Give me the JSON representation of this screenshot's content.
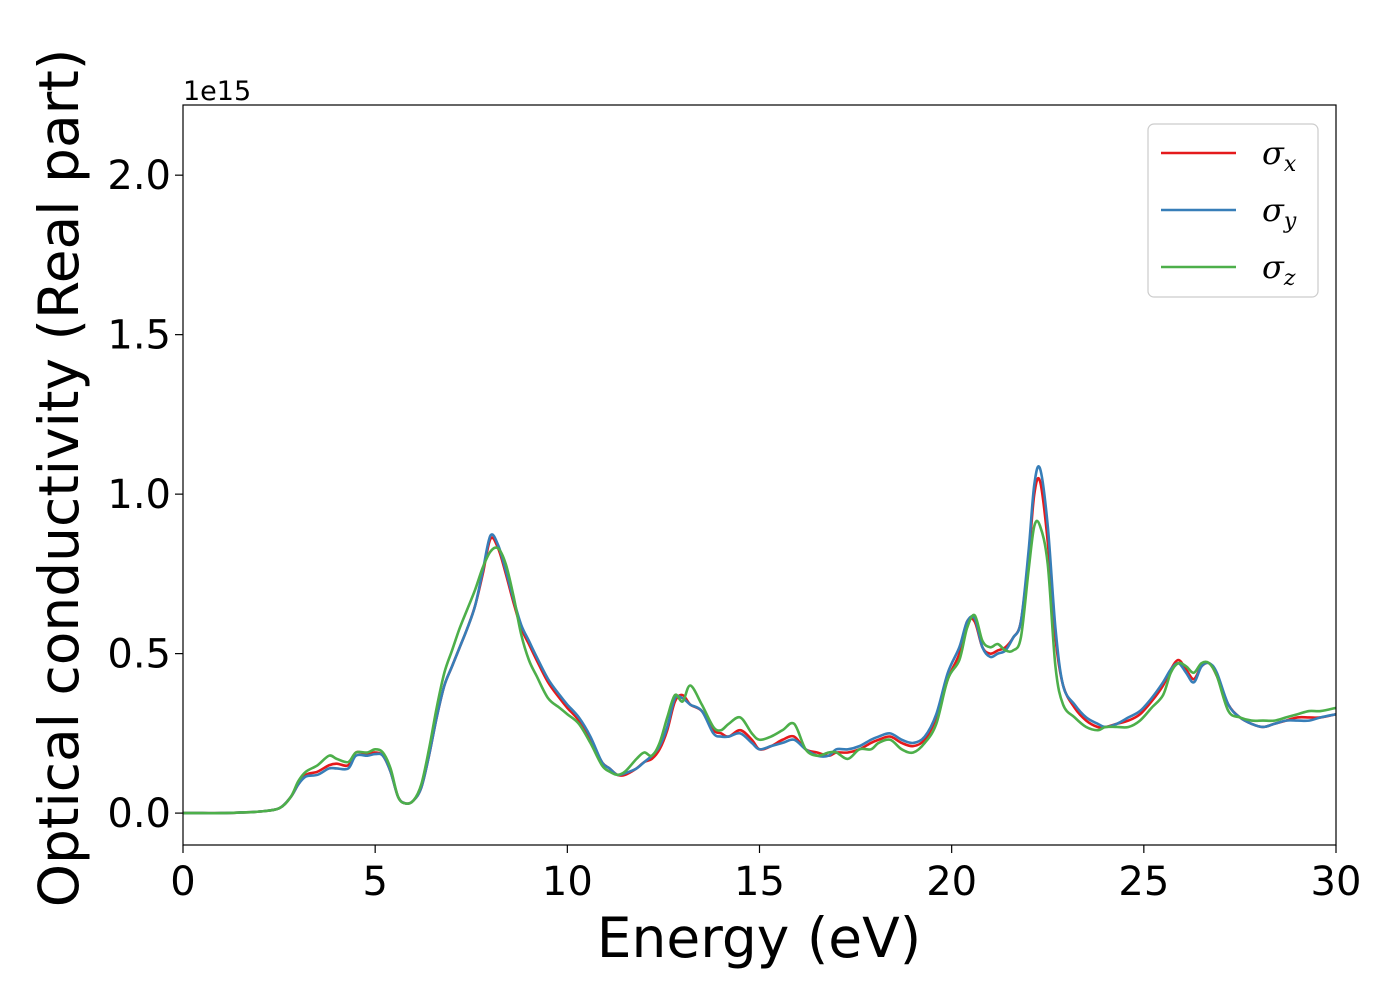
{
  "chart_data": {
    "type": "line",
    "title": "",
    "xlabel": "Energy (eV)",
    "ylabel": "Optical conductivity (Real part)",
    "y_offset_label": "1e15",
    "xlim": [
      0,
      30
    ],
    "ylim": [
      -0.1,
      2.22
    ],
    "xticks": [
      0,
      5,
      10,
      15,
      20,
      25,
      30
    ],
    "xtick_labels": [
      "0",
      "5",
      "10",
      "15",
      "20",
      "25",
      "30"
    ],
    "yticks": [
      0.0,
      0.5,
      1.0,
      1.5,
      2.0
    ],
    "ytick_labels": [
      "0.0",
      "0.5",
      "1.0",
      "1.5",
      "2.0"
    ],
    "grid": false,
    "legend_position": "top-right",
    "x": [
      0,
      0.5,
      1,
      1.5,
      2,
      2.5,
      2.8,
      3,
      3.2,
      3.5,
      3.8,
      4,
      4.3,
      4.5,
      4.8,
      5,
      5.2,
      5.4,
      5.6,
      5.8,
      6,
      6.2,
      6.4,
      6.6,
      6.8,
      7,
      7.2,
      7.4,
      7.6,
      7.8,
      8,
      8.2,
      8.4,
      8.6,
      8.8,
      9,
      9.2,
      9.5,
      9.8,
      10,
      10.3,
      10.6,
      10.9,
      11.1,
      11.3,
      11.5,
      11.8,
      12,
      12.2,
      12.4,
      12.6,
      12.8,
      13,
      13.2,
      13.5,
      13.8,
      14,
      14.2,
      14.5,
      14.8,
      15,
      15.3,
      15.6,
      15.9,
      16.2,
      16.5,
      16.8,
      17,
      17.3,
      17.6,
      17.9,
      18.1,
      18.4,
      18.7,
      19,
      19.3,
      19.6,
      19.9,
      20.2,
      20.4,
      20.6,
      20.8,
      21,
      21.2,
      21.4,
      21.6,
      21.8,
      22,
      22.15,
      22.3,
      22.5,
      22.7,
      22.9,
      23.2,
      23.5,
      23.8,
      24,
      24.3,
      24.6,
      24.9,
      25.2,
      25.5,
      25.7,
      25.9,
      26.1,
      26.3,
      26.5,
      26.7,
      26.9,
      27.2,
      27.5,
      27.8,
      28.1,
      28.4,
      28.7,
      29,
      29.3,
      29.6,
      30
    ],
    "series": [
      {
        "name": "σ_x",
        "color": "#e41a1c",
        "values": [
          0,
          0,
          0,
          0.002,
          0.005,
          0.015,
          0.05,
          0.09,
          0.12,
          0.13,
          0.15,
          0.155,
          0.15,
          0.19,
          0.185,
          0.19,
          0.18,
          0.13,
          0.05,
          0.03,
          0.04,
          0.08,
          0.18,
          0.3,
          0.4,
          0.46,
          0.52,
          0.58,
          0.65,
          0.75,
          0.86,
          0.83,
          0.75,
          0.66,
          0.58,
          0.53,
          0.48,
          0.41,
          0.36,
          0.33,
          0.29,
          0.23,
          0.16,
          0.14,
          0.12,
          0.12,
          0.14,
          0.16,
          0.17,
          0.2,
          0.26,
          0.35,
          0.37,
          0.34,
          0.32,
          0.26,
          0.25,
          0.24,
          0.26,
          0.23,
          0.2,
          0.21,
          0.23,
          0.24,
          0.2,
          0.19,
          0.18,
          0.19,
          0.19,
          0.2,
          0.22,
          0.23,
          0.24,
          0.22,
          0.21,
          0.23,
          0.3,
          0.42,
          0.5,
          0.6,
          0.6,
          0.52,
          0.5,
          0.51,
          0.52,
          0.55,
          0.6,
          0.8,
          1.0,
          1.04,
          0.85,
          0.55,
          0.4,
          0.33,
          0.29,
          0.27,
          0.27,
          0.28,
          0.29,
          0.31,
          0.35,
          0.4,
          0.45,
          0.48,
          0.45,
          0.42,
          0.46,
          0.47,
          0.43,
          0.34,
          0.3,
          0.28,
          0.27,
          0.28,
          0.29,
          0.3,
          0.3,
          0.3,
          0.31
        ]
      },
      {
        "name": "σ_y",
        "color": "#377eb8",
        "values": [
          0,
          0,
          0,
          0.002,
          0.005,
          0.015,
          0.05,
          0.09,
          0.115,
          0.12,
          0.14,
          0.14,
          0.14,
          0.18,
          0.18,
          0.185,
          0.18,
          0.13,
          0.05,
          0.03,
          0.04,
          0.08,
          0.18,
          0.3,
          0.4,
          0.46,
          0.52,
          0.58,
          0.65,
          0.76,
          0.87,
          0.84,
          0.76,
          0.67,
          0.59,
          0.54,
          0.49,
          0.42,
          0.37,
          0.34,
          0.3,
          0.24,
          0.16,
          0.14,
          0.12,
          0.125,
          0.14,
          0.16,
          0.18,
          0.21,
          0.27,
          0.36,
          0.36,
          0.34,
          0.32,
          0.25,
          0.24,
          0.24,
          0.25,
          0.22,
          0.2,
          0.21,
          0.22,
          0.23,
          0.2,
          0.18,
          0.18,
          0.2,
          0.2,
          0.21,
          0.23,
          0.24,
          0.25,
          0.23,
          0.22,
          0.24,
          0.31,
          0.44,
          0.52,
          0.6,
          0.61,
          0.52,
          0.49,
          0.5,
          0.51,
          0.55,
          0.6,
          0.82,
          1.03,
          1.08,
          0.9,
          0.58,
          0.4,
          0.34,
          0.3,
          0.28,
          0.27,
          0.28,
          0.3,
          0.32,
          0.36,
          0.41,
          0.45,
          0.47,
          0.44,
          0.41,
          0.46,
          0.47,
          0.44,
          0.34,
          0.3,
          0.28,
          0.27,
          0.28,
          0.29,
          0.29,
          0.29,
          0.3,
          0.31
        ]
      },
      {
        "name": "σ_z",
        "color": "#4daf4a",
        "values": [
          0,
          0,
          0,
          0.002,
          0.005,
          0.015,
          0.05,
          0.1,
          0.13,
          0.15,
          0.18,
          0.17,
          0.16,
          0.19,
          0.19,
          0.2,
          0.19,
          0.14,
          0.05,
          0.03,
          0.04,
          0.09,
          0.2,
          0.33,
          0.44,
          0.51,
          0.58,
          0.64,
          0.7,
          0.77,
          0.82,
          0.83,
          0.78,
          0.68,
          0.56,
          0.48,
          0.43,
          0.36,
          0.33,
          0.31,
          0.28,
          0.22,
          0.15,
          0.13,
          0.12,
          0.13,
          0.17,
          0.19,
          0.18,
          0.22,
          0.3,
          0.37,
          0.35,
          0.4,
          0.34,
          0.27,
          0.26,
          0.28,
          0.3,
          0.25,
          0.23,
          0.24,
          0.26,
          0.28,
          0.2,
          0.18,
          0.19,
          0.19,
          0.17,
          0.2,
          0.2,
          0.22,
          0.23,
          0.2,
          0.19,
          0.22,
          0.28,
          0.42,
          0.48,
          0.58,
          0.62,
          0.54,
          0.52,
          0.53,
          0.51,
          0.51,
          0.55,
          0.76,
          0.9,
          0.9,
          0.78,
          0.46,
          0.34,
          0.3,
          0.27,
          0.26,
          0.27,
          0.27,
          0.27,
          0.29,
          0.33,
          0.37,
          0.44,
          0.47,
          0.46,
          0.44,
          0.47,
          0.47,
          0.43,
          0.32,
          0.3,
          0.29,
          0.29,
          0.29,
          0.3,
          0.31,
          0.32,
          0.32,
          0.33
        ]
      }
    ]
  }
}
